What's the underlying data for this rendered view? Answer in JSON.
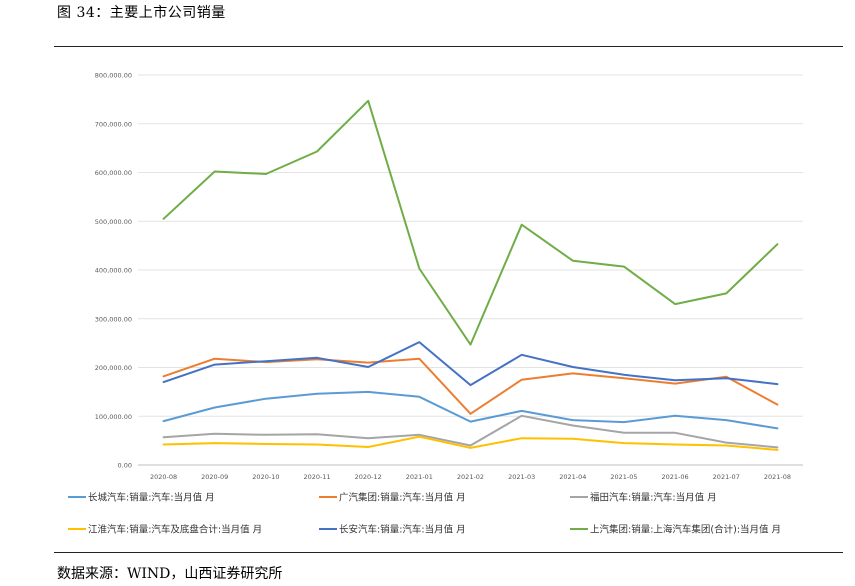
{
  "figure": {
    "title": "图 34：主要上市公司销量",
    "source": "数据来源：WIND，山西证券研究所"
  },
  "chart_data": {
    "type": "line",
    "title": "",
    "xlabel": "",
    "ylabel": "",
    "ylim": [
      0,
      800000
    ],
    "yticks": [
      0,
      100000,
      200000,
      300000,
      400000,
      500000,
      600000,
      700000,
      800000
    ],
    "ytick_labels": [
      "0.00",
      "100,000.00",
      "200,000.00",
      "300,000.00",
      "400,000.00",
      "500,000.00",
      "600,000.00",
      "700,000.00",
      "800,000.00"
    ],
    "grid": true,
    "legend_position": "bottom",
    "categories": [
      "2020-08",
      "2020-09",
      "2020-10",
      "2020-11",
      "2020-12",
      "2021-01",
      "2021-02",
      "2021-03",
      "2021-04",
      "2021-05",
      "2021-06",
      "2021-07",
      "2021-08"
    ],
    "series": [
      {
        "name": "长城汽车:销量:汽车:当月值 月",
        "color": "#5b9bd5",
        "values": [
          90000,
          118000,
          136000,
          146000,
          150000,
          140000,
          89000,
          111000,
          92000,
          88000,
          101000,
          92000,
          75000
        ]
      },
      {
        "name": "广汽集团:销量:汽车:当月值 月",
        "color": "#ed7d31",
        "values": [
          182000,
          218000,
          211000,
          217000,
          210000,
          218000,
          105000,
          175000,
          188000,
          178000,
          167000,
          181000,
          124000
        ]
      },
      {
        "name": "福田汽车:销量:汽车:当月值 月",
        "color": "#a5a5a5",
        "values": [
          57000,
          64000,
          62000,
          63000,
          55000,
          62000,
          40000,
          101000,
          81000,
          66000,
          66000,
          46000,
          36000
        ]
      },
      {
        "name": "江淮汽车:销量:汽车及底盘合计:当月值 月",
        "color": "#ffc000",
        "values": [
          42000,
          45000,
          43000,
          42000,
          37000,
          58000,
          35000,
          55000,
          54000,
          45000,
          42000,
          40000,
          31000
        ]
      },
      {
        "name": "长安汽车:销量:汽车:当月值 月",
        "color": "#4472c4",
        "values": [
          170000,
          206000,
          213000,
          220000,
          201000,
          252000,
          164000,
          226000,
          201000,
          185000,
          174000,
          178000,
          166000
        ]
      },
      {
        "name": "上汽集团:销量:上海汽车集团(合计):当月值 月",
        "color": "#70ad47",
        "values": [
          505000,
          602000,
          597000,
          643000,
          747000,
          403000,
          247000,
          493000,
          419000,
          407000,
          330000,
          352000,
          453000
        ]
      }
    ]
  }
}
